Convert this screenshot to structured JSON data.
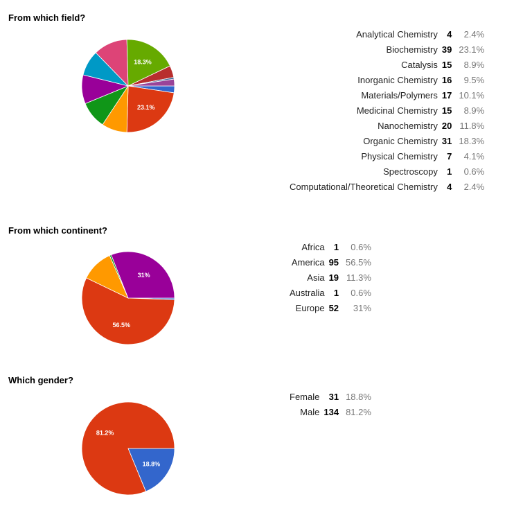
{
  "chart_data": [
    {
      "type": "pie",
      "title": "From which field?",
      "categories": [
        "Analytical Chemistry",
        "Biochemistry",
        "Catalysis",
        "Inorganic Chemistry",
        "Materials/Polymers",
        "Medicinal Chemistry",
        "Nanochemistry",
        "Organic Chemistry",
        "Physical Chemistry",
        "Spectroscopy",
        "Computational/Theoretical Chemistry"
      ],
      "values": [
        4,
        39,
        15,
        16,
        17,
        15,
        20,
        31,
        7,
        1,
        4
      ],
      "percent_labels": [
        "2.4%",
        "23.1%",
        "8.9%",
        "9.5%",
        "10.1%",
        "8.9%",
        "11.8%",
        "18.3%",
        "4.1%",
        "0.6%",
        "2.4%"
      ],
      "colors": [
        "#3366cc",
        "#dc3912",
        "#ff9900",
        "#109618",
        "#990099",
        "#0099c6",
        "#dd4477",
        "#66aa00",
        "#b82e2e",
        "#316395",
        "#994499"
      ],
      "legend_placement": "right"
    },
    {
      "type": "pie",
      "title": "From which continent?",
      "categories": [
        "Africa",
        "America",
        "Asia",
        "Australia",
        "Europe"
      ],
      "values": [
        1,
        95,
        19,
        1,
        52
      ],
      "percent_labels": [
        "0.6%",
        "56.5%",
        "11.3%",
        "0.6%",
        "31%"
      ],
      "colors": [
        "#3366cc",
        "#dc3912",
        "#ff9900",
        "#109618",
        "#990099"
      ],
      "legend_placement": "right"
    },
    {
      "type": "pie",
      "title": "Which gender?",
      "categories": [
        "Female",
        "Male"
      ],
      "values": [
        31,
        134
      ],
      "percent_labels": [
        "18.8%",
        "81.2%"
      ],
      "colors": [
        "#3366cc",
        "#dc3912"
      ],
      "legend_placement": "right"
    }
  ]
}
